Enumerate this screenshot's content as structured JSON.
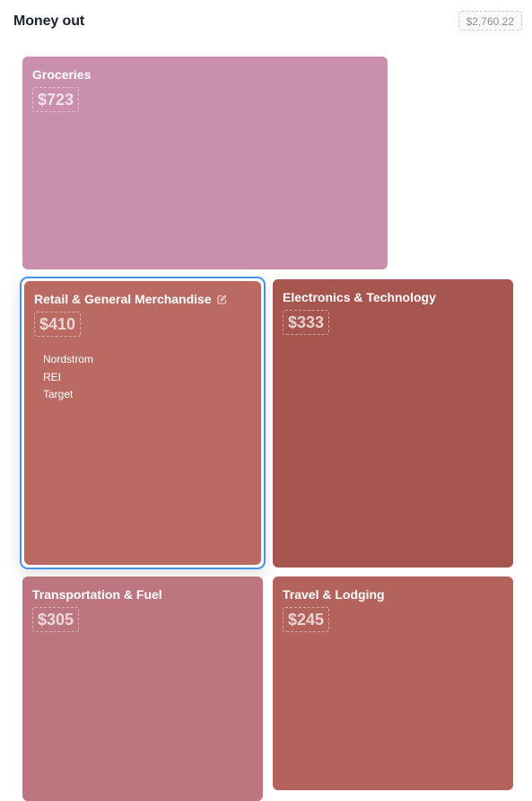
{
  "header": {
    "title": "Money out",
    "total": "$2,760.22"
  },
  "tiles": [
    {
      "name": "Groceries",
      "amount": "$723",
      "color": "#cb8fae"
    },
    {
      "name": "Retail & General Merchandise",
      "amount": "$410",
      "color": "#ba6a62",
      "selected": true,
      "edit_icon": "edit-icon",
      "merchants": [
        "Nordstrom",
        "REI",
        "Target"
      ]
    },
    {
      "name": "Electronics & Technology",
      "amount": "$333",
      "color": "#a6564e"
    },
    {
      "name": "Transportation & Fuel",
      "amount": "$305",
      "color": "#bd7580"
    },
    {
      "name": "Travel & Lodging",
      "amount": "$245",
      "color": "#b3635c"
    }
  ],
  "colors": {
    "selection_ring": "#4a90e6"
  }
}
